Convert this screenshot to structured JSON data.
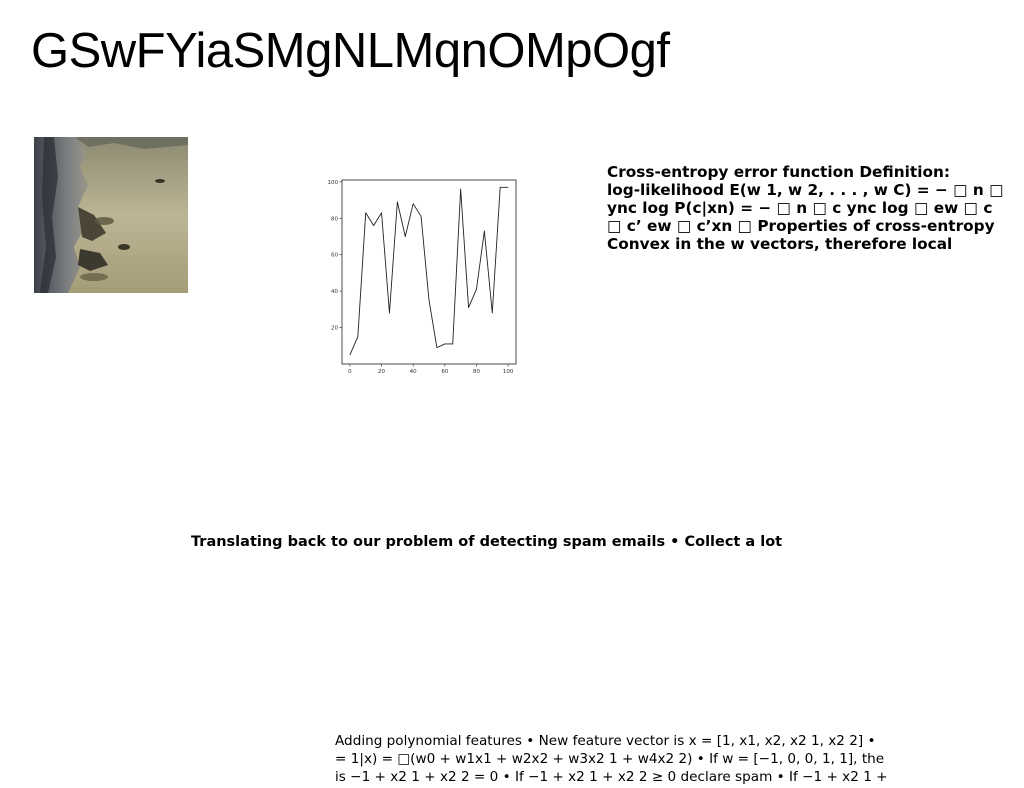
{
  "title": "GSwFYiaSMgNLMqnOMpOgf",
  "blocks": {
    "right": {
      "lines": [
        "Cross-entropy error function Definition:",
        "log-likelihood E(w 1, w 2, . . . , w C) = − □ n □",
        "ync log P(c|xn) = − □ n □ c ync log □ ew □ c",
        "□ c’ ew □ c’xn □ Properties of cross-entropy",
        "Convex in the w vectors, therefore local"
      ]
    },
    "middle": {
      "text": "Translating back to our problem of detecting spam emails • Collect a lot"
    },
    "bottom": {
      "lines": [
        "Adding polynomial features • New feature vector is x = [1, x1, x2, x2 1, x2 2] •",
        "= 1|x) = □(w0 + w1x1 + w2x2 + w3x2 1 + w4x2 2) • If w = [−1, 0, 0, 1, 1], the",
        "is −1 + x2 1 + x2 2 = 0 • If −1 + x2 1 + x2 2 ≥ 0 declare spam • If −1 + x2 1 +"
      ]
    }
  },
  "photo": {
    "subject": "coastal-cliff-and-sea"
  },
  "chart_data": {
    "type": "line",
    "x": [
      0,
      5,
      10,
      15,
      20,
      25,
      30,
      35,
      40,
      45,
      50,
      55,
      60,
      65,
      70,
      75,
      80,
      85,
      90,
      95,
      100
    ],
    "y": [
      5,
      15,
      83,
      76,
      83,
      28,
      89,
      70,
      88,
      81,
      35,
      9,
      11,
      11,
      96,
      31,
      41,
      73,
      28,
      97,
      97
    ],
    "series_color": "#222222",
    "xlim": [
      -5,
      105
    ],
    "ylim": [
      0,
      101
    ],
    "xticks": [
      "0",
      "20",
      "40",
      "60",
      "80",
      "100"
    ],
    "yticks": [
      "20",
      "40",
      "60",
      "80",
      "100"
    ],
    "grid": false,
    "title": "",
    "xlabel": "",
    "ylabel": ""
  }
}
